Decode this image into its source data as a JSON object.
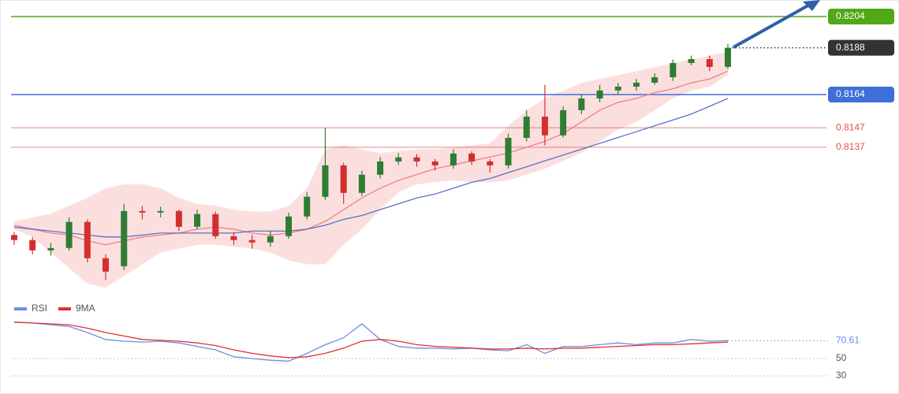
{
  "chart_data": [
    {
      "type": "candlestick",
      "ylim": [
        0.8063,
        0.82125
      ],
      "up_color": "#2e7d32",
      "down_color": "#d32f2f",
      "open": [
        0.8092,
        0.80894,
        0.80841,
        0.80853,
        0.80987,
        0.80801,
        0.8076,
        0.81043,
        0.81035,
        0.81043,
        0.80962,
        0.81027,
        0.80914,
        0.80894,
        0.80882,
        0.80914,
        0.81015,
        0.81116,
        0.81277,
        0.81136,
        0.81229,
        0.81297,
        0.81318,
        0.81297,
        0.81277,
        0.81338,
        0.81297,
        0.81277,
        0.81418,
        0.81527,
        0.81431,
        0.8156,
        0.8162,
        0.81661,
        0.81681,
        0.81701,
        0.81729,
        0.81802,
        0.81822,
        0.81782
      ],
      "high": [
        0.80935,
        0.8091,
        0.8088,
        0.8101,
        0.81,
        0.8082,
        0.8108,
        0.8107,
        0.81065,
        0.8105,
        0.8105,
        0.8104,
        0.80935,
        0.8092,
        0.8094,
        0.81035,
        0.8114,
        0.8147,
        0.8129,
        0.8125,
        0.8132,
        0.8134,
        0.81335,
        0.8131,
        0.8136,
        0.8135,
        0.8131,
        0.8144,
        0.8156,
        0.8169,
        0.8158,
        0.8164,
        0.8169,
        0.817,
        0.8172,
        0.8175,
        0.8182,
        0.8184,
        0.8184,
        0.819
      ],
      "low": [
        0.8087,
        0.8082,
        0.80815,
        0.8084,
        0.8078,
        0.8069,
        0.8074,
        0.81,
        0.8101,
        0.8094,
        0.8095,
        0.809,
        0.8087,
        0.8085,
        0.8086,
        0.809,
        0.81,
        0.811,
        0.8108,
        0.8112,
        0.8121,
        0.8128,
        0.8127,
        0.8125,
        0.8126,
        0.8128,
        0.8124,
        0.8126,
        0.814,
        0.8138,
        0.8142,
        0.8154,
        0.816,
        0.8164,
        0.8166,
        0.8169,
        0.8171,
        0.8179,
        0.8176,
        0.8177
      ],
      "close": [
        0.80894,
        0.80841,
        0.80853,
        0.80987,
        0.80801,
        0.80732,
        0.81043,
        0.81035,
        0.81043,
        0.80962,
        0.81027,
        0.80914,
        0.80894,
        0.80882,
        0.80914,
        0.81015,
        0.81116,
        0.81277,
        0.81136,
        0.81229,
        0.81297,
        0.81318,
        0.81297,
        0.81277,
        0.81338,
        0.81297,
        0.81277,
        0.81418,
        0.81527,
        0.81431,
        0.8156,
        0.8162,
        0.81661,
        0.81681,
        0.81701,
        0.81729,
        0.81802,
        0.81822,
        0.81782,
        0.8188
      ],
      "band": {
        "color": "#f8c9c9",
        "upper": [
          0.8099,
          0.8101,
          0.8103,
          0.8107,
          0.8111,
          0.8116,
          0.8118,
          0.8118,
          0.8116,
          0.8111,
          0.8108,
          0.8107,
          0.8105,
          0.8104,
          0.8104,
          0.8107,
          0.8116,
          0.8136,
          0.8138,
          0.8136,
          0.8134,
          0.8135,
          0.8136,
          0.8136,
          0.8137,
          0.8138,
          0.8139,
          0.8148,
          0.8156,
          0.8162,
          0.8166,
          0.817,
          0.8172,
          0.8174,
          0.8176,
          0.8178,
          0.818,
          0.8182,
          0.8184,
          0.8186
        ],
        "lower": [
          0.8095,
          0.8091,
          0.8083,
          0.8075,
          0.8067,
          0.8065,
          0.8071,
          0.8077,
          0.8083,
          0.8085,
          0.8087,
          0.8087,
          0.8086,
          0.8085,
          0.8083,
          0.8079,
          0.8077,
          0.8077,
          0.8087,
          0.8095,
          0.8105,
          0.8114,
          0.8118,
          0.8119,
          0.812,
          0.8119,
          0.8119,
          0.812,
          0.8123,
          0.8126,
          0.813,
          0.8134,
          0.814,
          0.8146,
          0.815,
          0.8156,
          0.8162,
          0.8166,
          0.8168,
          0.8174
        ]
      },
      "averages": [
        {
          "color": "#f08080",
          "values": [
            0.8097,
            0.8095,
            0.8093,
            0.8092,
            0.8089,
            0.8087,
            0.8089,
            0.8091,
            0.8092,
            0.8093,
            0.8095,
            0.8096,
            0.8095,
            0.8093,
            0.8092,
            0.8093,
            0.8095,
            0.8099,
            0.8105,
            0.8111,
            0.8116,
            0.812,
            0.8123,
            0.8126,
            0.8128,
            0.813,
            0.8132,
            0.8134,
            0.8137,
            0.814,
            0.8144,
            0.815,
            0.8156,
            0.816,
            0.8162,
            0.8165,
            0.8167,
            0.817,
            0.8172,
            0.8176
          ]
        },
        {
          "color": "#5a72c8",
          "values": [
            0.8096,
            0.8095,
            0.8094,
            0.8093,
            0.8092,
            0.8091,
            0.8091,
            0.8092,
            0.8093,
            0.8093,
            0.8093,
            0.8093,
            0.8093,
            0.8094,
            0.8094,
            0.8094,
            0.8095,
            0.8097,
            0.81,
            0.8102,
            0.8105,
            0.8108,
            0.8111,
            0.8113,
            0.8116,
            0.8119,
            0.8121,
            0.8124,
            0.8127,
            0.813,
            0.8133,
            0.8136,
            0.8139,
            0.8142,
            0.8145,
            0.8148,
            0.8151,
            0.8154,
            0.8158,
            0.8162
          ]
        }
      ],
      "levels": [
        {
          "value": 0.8204,
          "color": "#52a818",
          "style": "box"
        },
        {
          "value": 0.8188,
          "color": "#333333",
          "style": "dotted-box"
        },
        {
          "value": 0.8164,
          "color": "#3f6fd8",
          "style": "box"
        },
        {
          "value": 0.8147,
          "color": "#e05050",
          "style": "text"
        },
        {
          "value": 0.8137,
          "color": "#e05050",
          "style": "text"
        }
      ]
    },
    {
      "type": "line",
      "ylim": [
        20,
        100
      ],
      "yticks": [
        50,
        30
      ],
      "grid": true,
      "series": [
        {
          "name": "RSI",
          "color": "#6a8fe0",
          "values": [
            92,
            91,
            89,
            87,
            80,
            72,
            70,
            69,
            70,
            68,
            64,
            60,
            52,
            50,
            48,
            47,
            56,
            66,
            74,
            90,
            72,
            64,
            62,
            62,
            61,
            62,
            60,
            59,
            66,
            56,
            64,
            64,
            66,
            68,
            66,
            68,
            68,
            72,
            70,
            70.61
          ]
        },
        {
          "name": "9MA",
          "color": "#e03030",
          "values": [
            92,
            91,
            90,
            89,
            85,
            80,
            76,
            72,
            71,
            70,
            68,
            65,
            60,
            56,
            53,
            51,
            52,
            56,
            62,
            70,
            72,
            70,
            66,
            64,
            63,
            62,
            61,
            61,
            62,
            61,
            62,
            62,
            63,
            64,
            65,
            66,
            66,
            67,
            68,
            69
          ]
        }
      ]
    }
  ]
}
